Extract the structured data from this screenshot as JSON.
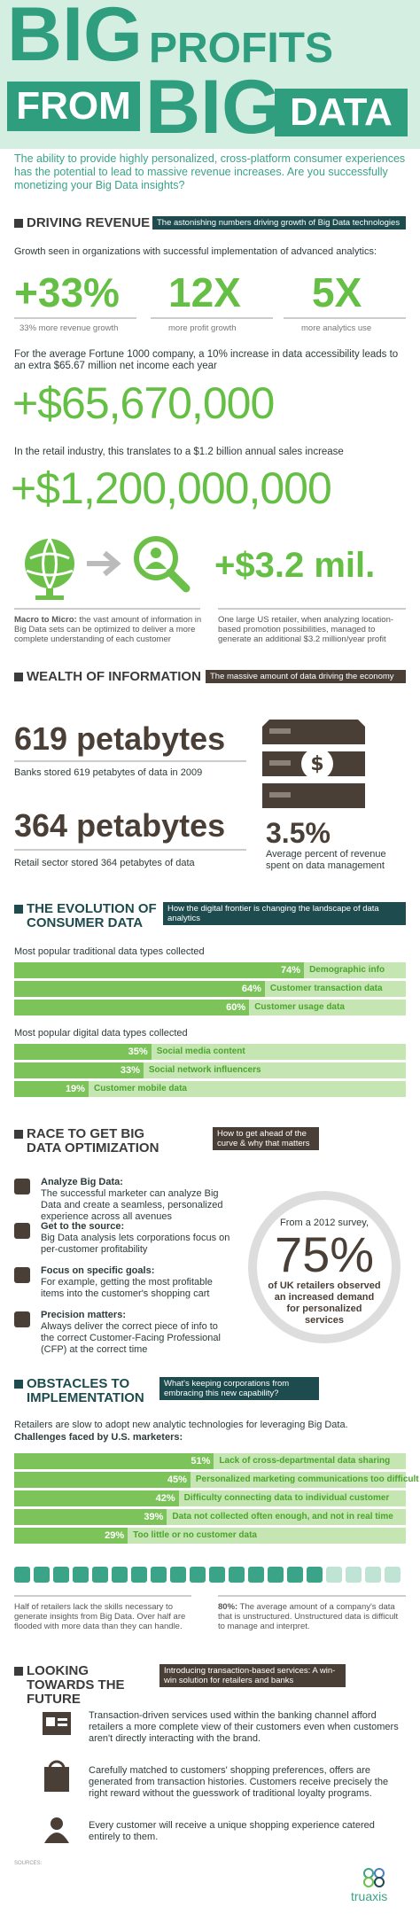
{
  "header": {
    "title_words": [
      "BIG",
      "PROFITS",
      "FROM",
      "BIG",
      "DATA"
    ],
    "intro": "The ability to provide highly personalized, cross-platform consumer experiences has the potential to lead to massive revenue increases. Are you successfully monetizing your Big Data insights?"
  },
  "driving_revenue": {
    "title": "DRIVING REVENUE",
    "subtitle": "The astonishing numbers driving growth of Big Data technologies",
    "growth_intro": "Growth seen in organizations with successful implementation of advanced analytics:",
    "stats": [
      {
        "value": "+33%",
        "caption": "33% more revenue growth"
      },
      {
        "value": "12X",
        "caption": "more profit growth"
      },
      {
        "value": "5X",
        "caption": "more analytics use"
      }
    ],
    "fortune_text": "For the average Fortune 1000 company, a 10% increase in data accessibility leads to an extra $65.67 million net income each year",
    "fortune_value": "+$65,670,000",
    "retail_text": "In the retail industry, this translates to a $1.2 billion annual sales increase",
    "retail_value": "+$1,200,000,000",
    "promo_value": "+$3.2 mil.",
    "macro_bold": "Macro to Micro:",
    "macro_text": "the vast amount of information in Big Data sets can be optimized to deliver a more complete understanding of each customer",
    "promo_text": "One large US retailer, when analyzing location-based promotion possibilities, managed to generate an additional $3.2 million/year profit"
  },
  "wealth": {
    "title": "WEALTH OF INFORMATION",
    "subtitle": "The massive amount of data driving the economy",
    "banks_value": "619 petabytes",
    "banks_caption": "Banks stored 619 petabytes of data in 2009",
    "retail_value": "364 petabytes",
    "retail_caption": "Retail sector stored 364 petabytes of data",
    "spend_value": "3.5%",
    "spend_caption": "Average percent of revenue spent on data management"
  },
  "evolution": {
    "title": "THE EVOLUTION OF CONSUMER DATA",
    "subtitle": "How the digital frontier is changing the landscape of data analytics",
    "traditional_title": "Most popular traditional data types collected",
    "traditional": [
      {
        "value": 74,
        "label": "74%",
        "name": "Demographic info"
      },
      {
        "value": 64,
        "label": "64%",
        "name": "Customer transaction data"
      },
      {
        "value": 60,
        "label": "60%",
        "name": "Customer usage data"
      }
    ],
    "digital_title": "Most popular digital data types collected",
    "digital": [
      {
        "value": 35,
        "label": "35%",
        "name": "Social media content"
      },
      {
        "value": 33,
        "label": "33%",
        "name": "Social network influencers"
      },
      {
        "value": 19,
        "label": "19%",
        "name": "Customer mobile data"
      }
    ]
  },
  "race": {
    "title": "RACE TO GET BIG DATA OPTIMIZATION",
    "subtitle": "How to get ahead of the curve & why that matters",
    "items": [
      {
        "title": "Analyze Big Data:",
        "text": "The successful marketer can analyze Big Data and create a seamless, personalized experience across all avenues"
      },
      {
        "title": "Get to the source:",
        "text": "Big Data analysis lets corporations focus on per-customer profitability"
      },
      {
        "title": "Focus on specific goals:",
        "text": "For example, getting the most profitable items into the customer's shopping cart"
      },
      {
        "title": "Precision matters:",
        "text": "Always deliver the correct piece of info to the correct Customer-Facing Professional (CFP) at the correct time"
      }
    ],
    "survey_intro": "From a 2012 survey,",
    "survey_value": "75%",
    "survey_text": "of UK retailers observed an increased demand for personalized services"
  },
  "obstacles": {
    "title": "OBSTACLES TO IMPLEMENTATION",
    "subtitle": "What's keeping corporations from embracing this new capability?",
    "intro": "Retailers are slow to adopt new analytic technologies for leveraging Big Data.",
    "challenges_title": "Challenges faced by U.S. marketers:",
    "bars": [
      {
        "value": 51,
        "label": "51%",
        "name": "Lack of cross-departmental data sharing"
      },
      {
        "value": 45,
        "label": "45%",
        "name": "Personalized marketing communications too difficult"
      },
      {
        "value": 42,
        "label": "42%",
        "name": "Difficulty connecting data to individual customer"
      },
      {
        "value": 39,
        "label": "39%",
        "name": "Data not collected often enough, and not in real time"
      },
      {
        "value": 29,
        "label": "29%",
        "name": "Too little or no customer data"
      }
    ],
    "skills_text": "Half of retailers lack the skills necessary to generate insights from Big Data. Over half are flooded with more data than they can handle.",
    "unstructured_bold": "80%:",
    "unstructured_text": "The average amount of a company's data that is unstructured. Unstructured data is difficult to manage and interpret."
  },
  "future": {
    "title": "LOOKING TOWARDS THE FUTURE",
    "subtitle": "Introducing transaction-based services: A win-win solution for retailers and banks",
    "items": [
      "Transaction-driven services used within the banking channel afford retailers a more complete view of their customers even when customers aren't directly interacting with the brand.",
      "Carefully matched to customers' shopping preferences, offers are generated from transaction histories. Customers receive precisely the right reward without the guesswork of traditional loyalty programs.",
      "Every customer will receive a unique shopping experience catered entirely to them."
    ]
  },
  "footer": {
    "sources_title": "SOURCES:",
    "logo": "truaxis"
  }
}
